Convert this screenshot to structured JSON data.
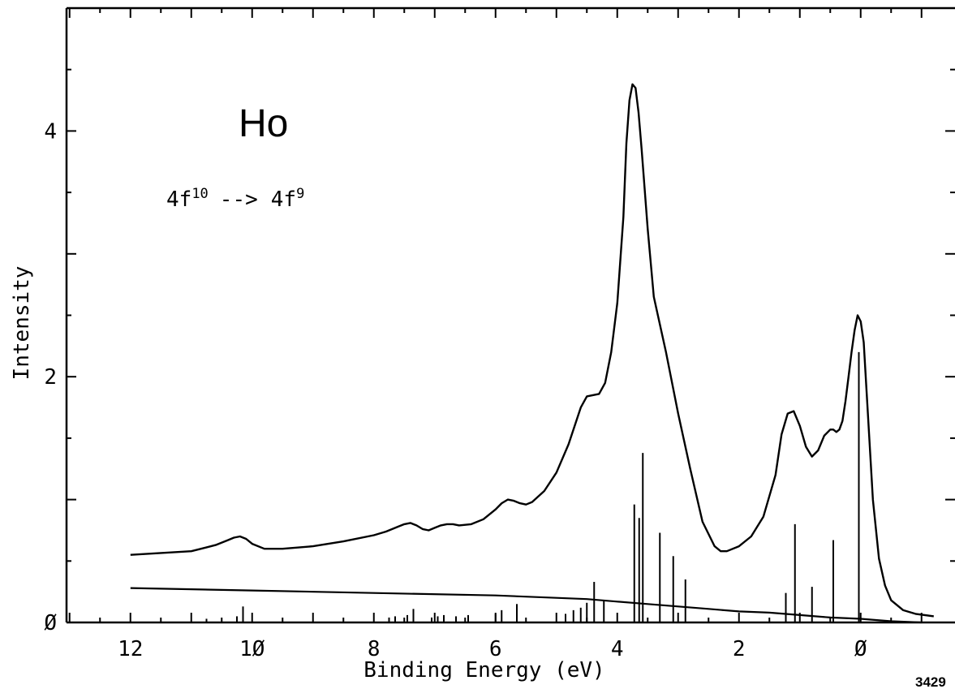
{
  "chart_data": {
    "type": "line",
    "element_label": "Ho",
    "transition_label": {
      "main1": "4f",
      "sup1": "10",
      "arrow": "-->",
      "main2": "4f",
      "sup2": "9"
    },
    "xlabel": "Binding Energy (eV)",
    "ylabel": "Intensity",
    "figure_number": "3429",
    "xlim": [
      13.05,
      -1.55
    ],
    "ylim": [
      0,
      5.0
    ],
    "x_ticks": [
      12,
      10,
      8,
      6,
      4,
      2,
      0
    ],
    "x_tick_labels": [
      "12",
      "1Ø",
      "8",
      "6",
      "4",
      "2",
      "Ø"
    ],
    "y_ticks": [
      0,
      2,
      4
    ],
    "y_tick_labels": [
      "Ø",
      "2",
      "4"
    ],
    "grid": false,
    "colors": {
      "line": "#000000",
      "background": "#ffffff"
    },
    "spectrum": {
      "x": [
        12.0,
        11.0,
        10.6,
        10.4,
        10.3,
        10.2,
        10.1,
        10.0,
        9.8,
        9.5,
        9.0,
        8.5,
        8.0,
        7.8,
        7.6,
        7.5,
        7.4,
        7.3,
        7.2,
        7.1,
        7.0,
        6.9,
        6.8,
        6.7,
        6.6,
        6.4,
        6.2,
        6.0,
        5.9,
        5.8,
        5.7,
        5.6,
        5.5,
        5.4,
        5.2,
        5.0,
        4.8,
        4.6,
        4.5,
        4.4,
        4.3,
        4.2,
        4.1,
        4.0,
        3.9,
        3.85,
        3.8,
        3.75,
        3.7,
        3.65,
        3.6,
        3.5,
        3.4,
        3.2,
        3.0,
        2.8,
        2.6,
        2.4,
        2.3,
        2.2,
        2.0,
        1.8,
        1.6,
        1.4,
        1.3,
        1.2,
        1.1,
        1.0,
        0.9,
        0.8,
        0.7,
        0.6,
        0.5,
        0.45,
        0.4,
        0.35,
        0.3,
        0.25,
        0.2,
        0.15,
        0.1,
        0.05,
        0.0,
        -0.05,
        -0.1,
        -0.2,
        -0.3,
        -0.4,
        -0.5,
        -0.7,
        -0.9,
        -1.2
      ],
      "y": [
        0.55,
        0.58,
        0.63,
        0.67,
        0.69,
        0.7,
        0.68,
        0.64,
        0.6,
        0.6,
        0.62,
        0.66,
        0.71,
        0.74,
        0.78,
        0.8,
        0.81,
        0.79,
        0.76,
        0.75,
        0.77,
        0.79,
        0.8,
        0.8,
        0.79,
        0.8,
        0.84,
        0.92,
        0.97,
        1.0,
        0.99,
        0.97,
        0.96,
        0.98,
        1.07,
        1.22,
        1.45,
        1.75,
        1.84,
        1.85,
        1.86,
        1.95,
        2.2,
        2.6,
        3.3,
        3.9,
        4.25,
        4.38,
        4.35,
        4.15,
        3.85,
        3.2,
        2.65,
        2.2,
        1.7,
        1.25,
        0.82,
        0.62,
        0.58,
        0.58,
        0.62,
        0.7,
        0.86,
        1.2,
        1.53,
        1.7,
        1.72,
        1.6,
        1.43,
        1.35,
        1.4,
        1.52,
        1.57,
        1.57,
        1.55,
        1.57,
        1.64,
        1.8,
        2.0,
        2.2,
        2.38,
        2.5,
        2.45,
        2.28,
        1.85,
        1.0,
        0.52,
        0.3,
        0.18,
        0.1,
        0.07,
        0.05
      ]
    },
    "background_curve": {
      "x": [
        12.0,
        10.0,
        8.0,
        6.0,
        5.0,
        4.5,
        4.0,
        3.5,
        3.0,
        2.5,
        2.0,
        1.5,
        1.0,
        0.5,
        0.0,
        -0.5,
        -1.0
      ],
      "y": [
        0.28,
        0.26,
        0.24,
        0.22,
        0.2,
        0.19,
        0.17,
        0.15,
        0.13,
        0.11,
        0.09,
        0.08,
        0.06,
        0.04,
        0.03,
        0.01,
        0.0
      ]
    },
    "multiplet_lines": {
      "x": [
        10.75,
        10.25,
        10.15,
        7.75,
        7.65,
        7.45,
        7.35,
        7.05,
        6.95,
        6.85,
        6.65,
        6.45,
        6.0,
        5.9,
        5.65,
        4.85,
        4.72,
        4.6,
        4.5,
        4.38,
        4.22,
        3.72,
        3.64,
        3.58,
        3.3,
        3.08,
        2.88,
        1.23,
        1.08,
        0.8,
        0.45,
        0.03
      ],
      "y": [
        0.03,
        0.05,
        0.13,
        0.04,
        0.05,
        0.06,
        0.11,
        0.04,
        0.05,
        0.06,
        0.05,
        0.06,
        0.07,
        0.1,
        0.15,
        0.07,
        0.1,
        0.12,
        0.16,
        0.33,
        0.18,
        0.96,
        0.85,
        1.38,
        0.73,
        0.54,
        0.35,
        0.24,
        0.8,
        0.29,
        0.67,
        2.2
      ]
    }
  }
}
